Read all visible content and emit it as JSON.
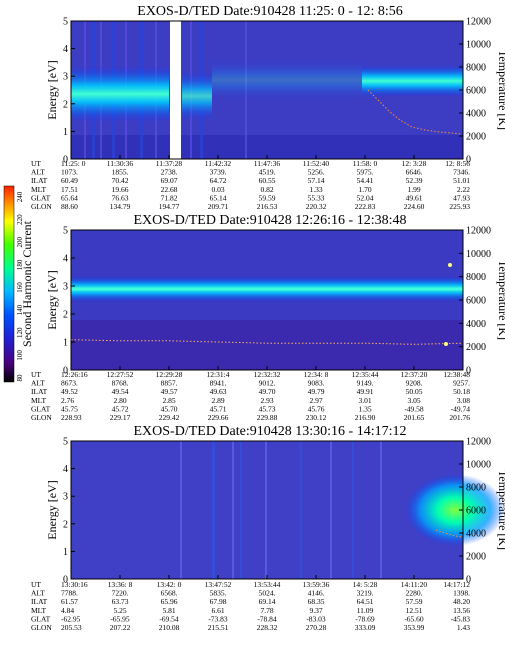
{
  "colorbar": {
    "label": "Second Harmonic Current",
    "ticks": [
      "80",
      "100",
      "120",
      "140",
      "160",
      "180",
      "200",
      "220",
      "240"
    ],
    "colors": [
      "#000000",
      "#4a0080",
      "#2020d0",
      "#0050ff",
      "#00b8ff",
      "#00ff90",
      "#40ff00",
      "#ffff00",
      "#ff9000",
      "#ff2000"
    ]
  },
  "panels": [
    {
      "title": "EXOS-D/TED    Date:910428  11:25: 0 - 12: 8:56",
      "y_ticks": [
        "0",
        "1",
        "2",
        "3",
        "4",
        "5"
      ],
      "t_ticks": [
        "0",
        "2000",
        "4000",
        "6000",
        "8000",
        "10000",
        "12000"
      ],
      "ylabel": "Energy [eV]",
      "y2label": "Temperature [K]",
      "eph_labels": [
        "UT",
        "ALT",
        "ILAT",
        "MLT",
        "GLAT",
        "GLON"
      ],
      "columns": [
        [
          "11:25: 0",
          "1073.",
          "60.49",
          "17.51",
          "65.64",
          "88.60"
        ],
        [
          "11:30:36",
          "1855.",
          "70.42",
          "19.66",
          "76.63",
          "134.79"
        ],
        [
          "11:37:28",
          "2738.",
          "69.07",
          "22.68",
          "71.82",
          "194.77"
        ],
        [
          "11:42:32",
          "3739.",
          "64.72",
          "0.03",
          "65.14",
          "209.71"
        ],
        [
          "11:47:36",
          "4519.",
          "60.55",
          "0.82",
          "59.59",
          "216.53"
        ],
        [
          "11:52:40",
          "5256.",
          "57.14",
          "1.33",
          "55.33",
          "220.32"
        ],
        [
          "11:58: 0",
          "5975.",
          "54.41",
          "1.70",
          "52.04",
          "222.83"
        ],
        [
          "12: 3:28",
          "6646.",
          "52.39",
          "1.99",
          "49.61",
          "224.60"
        ],
        [
          "12: 8:56",
          "7346.",
          "51.01",
          "2.22",
          "47.93",
          "225.93"
        ]
      ]
    },
    {
      "title": "EXOS-D/TED    Date:910428  12:26:16 - 12:38:48",
      "y_ticks": [
        "0",
        "1",
        "2",
        "3",
        "4",
        "5"
      ],
      "t_ticks": [
        "0",
        "2000",
        "4000",
        "6000",
        "8000",
        "10000",
        "12000"
      ],
      "ylabel": "Energy [eV]",
      "y2label": "Temperature [K]",
      "eph_labels": [
        "UT",
        "ALT",
        "ILAT",
        "MLT",
        "GLAT",
        "GLON"
      ],
      "columns": [
        [
          "12:26:16",
          "8673.",
          "49.52",
          "2.76",
          "45.75",
          "228.93"
        ],
        [
          "12:27:52",
          "8768.",
          "49.54",
          "2.80",
          "45.72",
          "229.17"
        ],
        [
          "12:29:28",
          "8857.",
          "49.57",
          "2.85",
          "45.70",
          "229.42"
        ],
        [
          "12:31:4",
          "8941.",
          "49.63",
          "2.89",
          "45.71",
          "229.66"
        ],
        [
          "12:32:32",
          "9012.",
          "49.70",
          "2.93",
          "45.73",
          "229.88"
        ],
        [
          "12:34: 8",
          "9083.",
          "49.79",
          "2.97",
          "45.76",
          "230.12"
        ],
        [
          "12:35:44",
          "9149.",
          "49.91",
          "3.01",
          "1.35",
          "216.90"
        ],
        [
          "12:37:20",
          "9208.",
          "50.05",
          "3.05",
          "-49.58",
          "201.65"
        ],
        [
          "12:38:48",
          "9257.",
          "50.18",
          "3.08",
          "-49.74",
          "201.76"
        ]
      ]
    },
    {
      "title": "EXOS-D/TED    Date:910428  13:30:16 - 14:17:12",
      "y_ticks": [
        "0",
        "1",
        "2",
        "3",
        "4",
        "5"
      ],
      "t_ticks": [
        "0",
        "2000",
        "4000",
        "6000",
        "8000",
        "10000",
        "12000"
      ],
      "ylabel": "Energy [eV]",
      "y2label": "Temperature [K]",
      "eph_labels": [
        "UT",
        "ALT",
        "ILAT",
        "MLT",
        "GLAT",
        "GLON"
      ],
      "columns": [
        [
          "13:30:16",
          "7788.",
          "61.57",
          "4.84",
          "-62.95",
          "205.53"
        ],
        [
          "13:36: 8",
          "7220.",
          "63.73",
          "5.25",
          "-65.95",
          "207.22"
        ],
        [
          "13:42: 0",
          "6568.",
          "65.96",
          "5.81",
          "-69.54",
          "210.08"
        ],
        [
          "13:47:52",
          "5835.",
          "67.98",
          "6.61",
          "-73.83",
          "215.51"
        ],
        [
          "13:53:44",
          "5024.",
          "69.14",
          "7.78",
          "-78.84",
          "228.32"
        ],
        [
          "13:59:36",
          "4146.",
          "68.35",
          "9.37",
          "-83.03",
          "270.28"
        ],
        [
          "14: 5:28",
          "3219.",
          "64.51",
          "11.09",
          "-78.69",
          "333.09"
        ],
        [
          "14:11:20",
          "2280.",
          "57.59",
          "12.51",
          "-65.60",
          "353.99"
        ],
        [
          "14:17:12",
          "1398.",
          "48.20",
          "13.56",
          "-45.83",
          "1.43"
        ]
      ]
    }
  ],
  "chart_data": [
    {
      "type": "heatmap",
      "title": "EXOS-D/TED    Date:910428  11:25: 0 - 12: 8:56",
      "ylabel": "Energy [eV]",
      "y2label": "Temperature [K]",
      "ylim": [
        0,
        5
      ],
      "y2lim": [
        0,
        12000
      ],
      "x": [
        "11:25: 0",
        "11:30:36",
        "11:37:28",
        "11:42:32",
        "11:47:36",
        "11:52:40",
        "11:58: 0",
        "12: 3:28",
        "12: 8:56"
      ],
      "band": {
        "x": [
          "11:25: 0",
          "11:30:36",
          "11:37:28",
          "11:42:32",
          "11:47:36",
          "11:52:40",
          "11:58: 0",
          "12: 3:28",
          "12: 8:56"
        ],
        "energy": [
          2.4,
          2.4,
          2.2,
          2.6,
          2.9,
          3.0,
          2.9,
          2.8,
          2.8
        ]
      },
      "gap": [
        "11:37:10",
        "11:37:50"
      ],
      "temperature": {
        "x": [
          "11:58: 0",
          "12: 3:28",
          "12: 8:56"
        ],
        "values": [
          4500,
          2200,
          1600
        ]
      }
    },
    {
      "type": "heatmap",
      "title": "EXOS-D/TED    Date:910428  12:26:16 - 12:38:48",
      "ylabel": "Energy [eV]",
      "y2label": "Temperature [K]",
      "ylim": [
        0,
        5
      ],
      "y2lim": [
        0,
        12000
      ],
      "x": [
        "12:26:16",
        "12:27:52",
        "12:29:28",
        "12:31:4",
        "12:32:32",
        "12:34: 8",
        "12:35:44",
        "12:37:20",
        "12:38:48"
      ],
      "band": {
        "x": [
          "12:26:16",
          "12:38:48"
        ],
        "energy": [
          3.0,
          3.0
        ]
      },
      "temperature": {
        "x": [
          "12:26:16",
          "12:27:52",
          "12:29:28",
          "12:31:4",
          "12:32:32",
          "12:34: 8",
          "12:35:44",
          "12:37:20",
          "12:38:48"
        ],
        "values": [
          2600,
          2500,
          2500,
          2400,
          2300,
          2300,
          2300,
          2200,
          2300
        ]
      }
    },
    {
      "type": "heatmap",
      "title": "EXOS-D/TED    Date:910428  13:30:16 - 14:17:12",
      "ylabel": "Energy [eV]",
      "y2label": "Temperature [K]",
      "ylim": [
        0,
        5
      ],
      "y2lim": [
        0,
        12000
      ],
      "x": [
        "13:30:16",
        "13:36: 8",
        "13:42: 0",
        "13:47:52",
        "13:53:44",
        "13:59:36",
        "14: 5:28",
        "14:11:20",
        "14:17:12"
      ],
      "band": {
        "x": [
          "14:11:20",
          "14:17:12"
        ],
        "energy": [
          2.8,
          2.8
        ]
      },
      "temperature": {
        "x": [
          "14:11:20",
          "14:17:12"
        ],
        "values": [
          3800,
          3600
        ]
      }
    }
  ]
}
